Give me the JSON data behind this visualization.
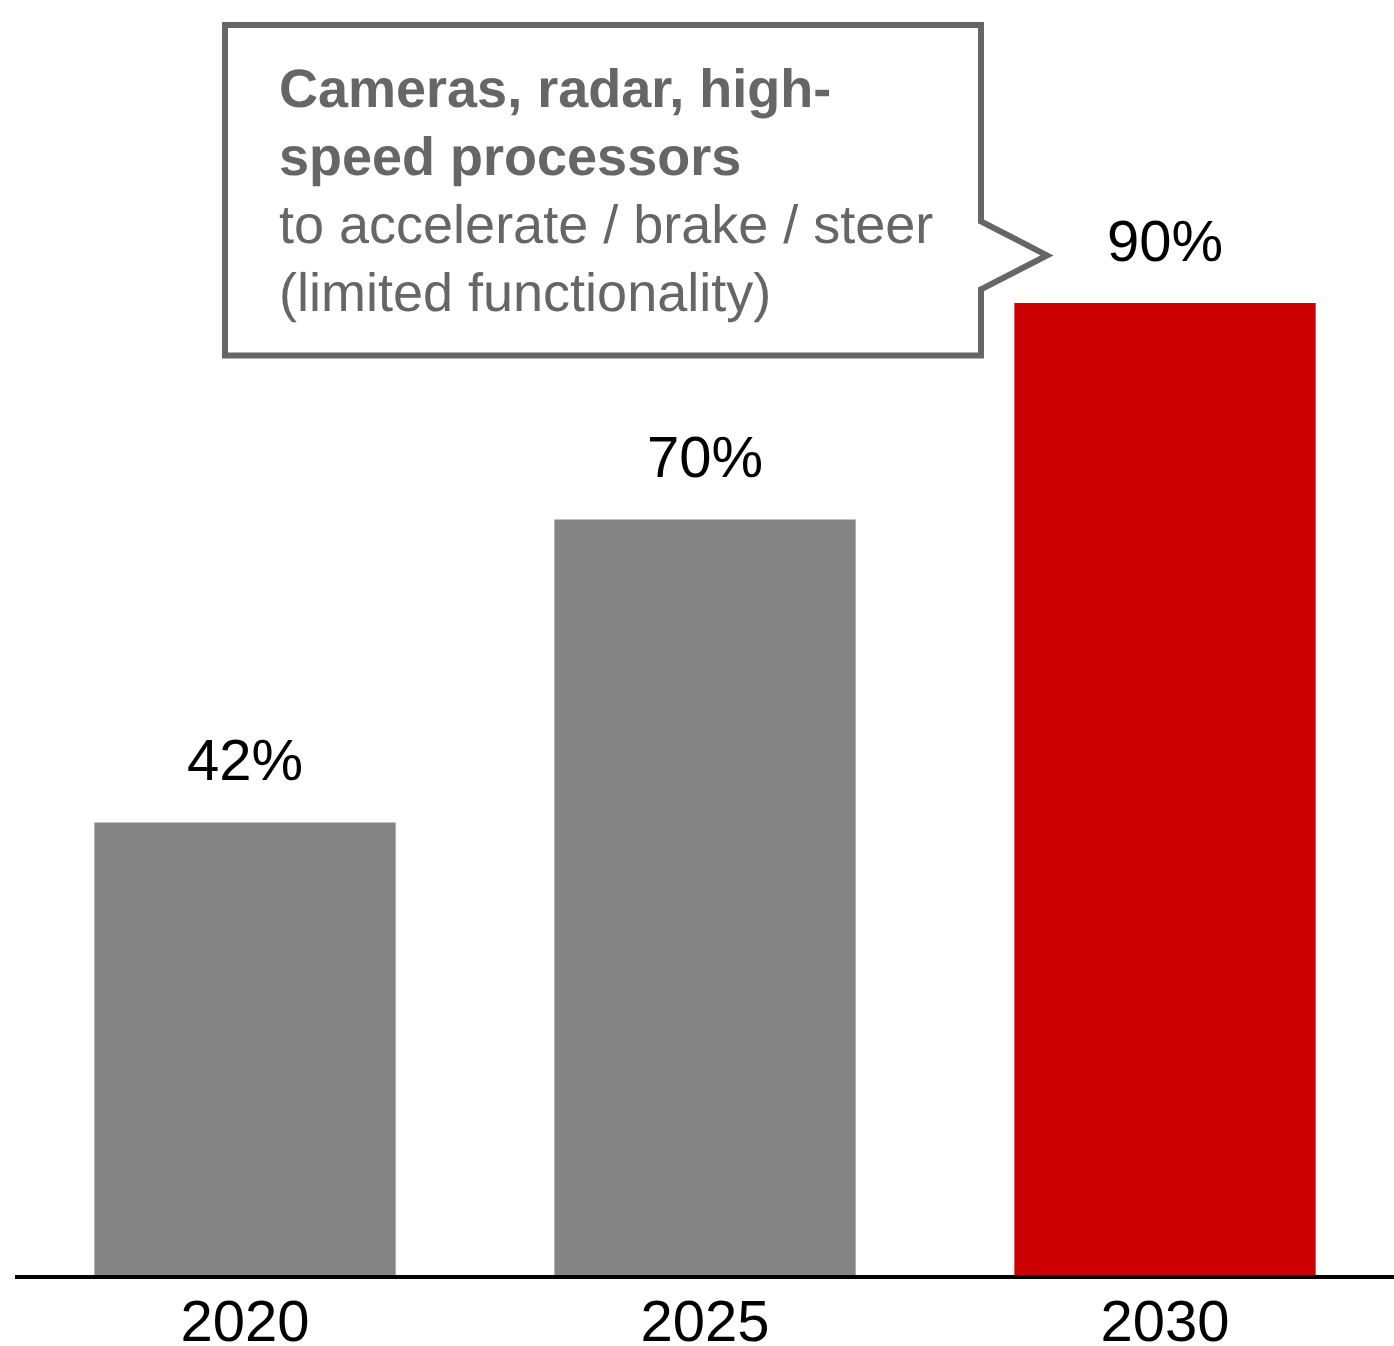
{
  "chart_data": {
    "type": "bar",
    "categories": [
      "2020",
      "2025",
      "2030"
    ],
    "values": [
      42,
      70,
      90
    ],
    "colors": [
      "#848484",
      "#848484",
      "#cc0000"
    ],
    "value_labels": [
      "42%",
      "70%",
      "90%"
    ],
    "annotations": [
      "Cameras, radar, high-speed processors",
      "to accelerate / brake / steer (limited functionality)"
    ]
  }
}
